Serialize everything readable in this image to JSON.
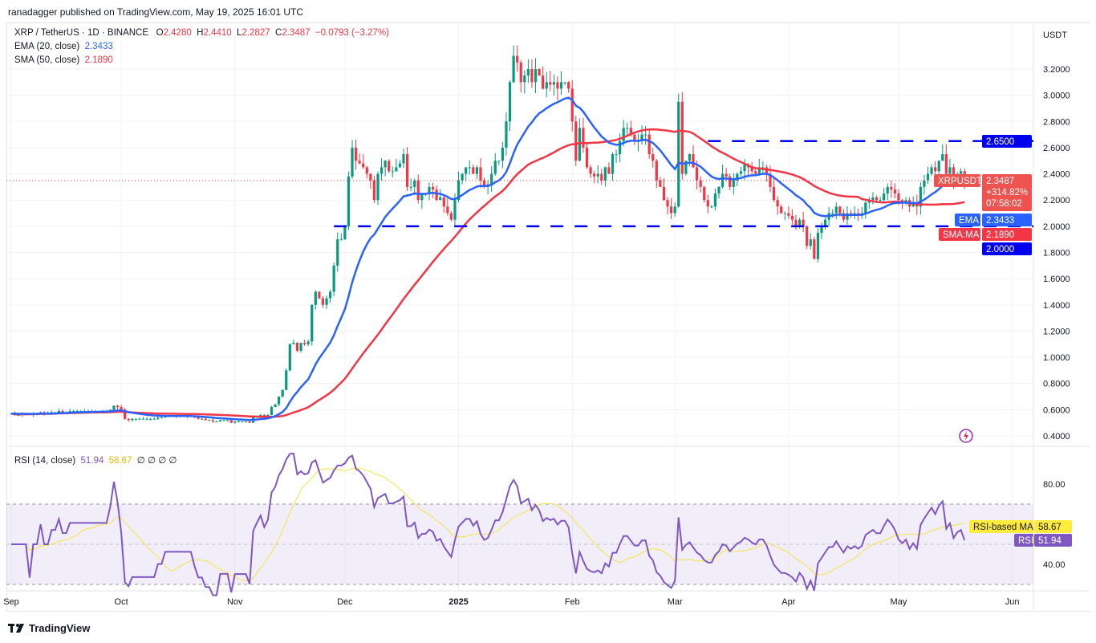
{
  "publisher_line": "ranadagger published on TradingView.com, May 19, 2025 16:01 UTC",
  "symbol": {
    "title": "XRP / TetherUS · 1D · BINANCE",
    "o_label": "O",
    "o": "2.4280",
    "h_label": "H",
    "h": "2.4410",
    "l_label": "L",
    "l": "2.2827",
    "c_label": "C",
    "c": "2.3487",
    "change": "−0.0793 (−3.27%)"
  },
  "indicators": {
    "ema_label": "EMA (20, close)",
    "ema_value": "2.3433",
    "sma_label": "SMA (50, close)",
    "sma_value": "2.1890",
    "rsi_label": "RSI (14, close)",
    "rsi_value": "51.94",
    "rsi_ma_value": "58.67",
    "rsi_extra": "∅ ∅ ∅ ∅"
  },
  "currency": "USDT",
  "price_tags": {
    "resistance": "2.6500",
    "support": "2.0000",
    "symbol_tag": "XRPUSDT",
    "last": "2.3487",
    "pct": "+314.82%",
    "countdown": "07:58:02",
    "ema_tag": "EMA",
    "ema": "2.3433",
    "sma_tag": "SMA:MA",
    "sma": "2.1890"
  },
  "rsi_tags": {
    "ma_tag": "RSI-based MA",
    "ma": "58.67",
    "rsi_tag": "RSI",
    "rsi": "51.94"
  },
  "footer_logo": "TradingView",
  "colors": {
    "up": "#089981",
    "down": "#f23645",
    "ema": "#2962ff",
    "sma": "#f23645",
    "level": "#0000ee",
    "rsi": "#7e57c2",
    "rsi_ma": "#f5e342"
  },
  "chart_data": {
    "type": "candlestick",
    "start_date": "2024-09-01",
    "y_ticks": [
      "3.2000",
      "3.0000",
      "2.8000",
      "2.6000",
      "2.4000",
      "2.2000",
      "2.0000",
      "1.8000",
      "1.6000",
      "1.4000",
      "1.2000",
      "1.0000",
      "0.8000",
      "0.6000",
      "0.4000"
    ],
    "x_ticks": [
      "Sep",
      "Oct",
      "Nov",
      "Dec",
      "2025",
      "Feb",
      "Mar",
      "Apr",
      "May",
      "Jun"
    ],
    "rsi_ticks": [
      "80.00",
      "40.00"
    ],
    "horizontal_levels": [
      2.65,
      2.0
    ],
    "closes": [
      0.57,
      0.56,
      0.56,
      0.57,
      0.57,
      0.56,
      0.57,
      0.57,
      0.58,
      0.57,
      0.57,
      0.58,
      0.58,
      0.59,
      0.58,
      0.58,
      0.59,
      0.59,
      0.59,
      0.59,
      0.59,
      0.59,
      0.59,
      0.59,
      0.59,
      0.59,
      0.59,
      0.6,
      0.63,
      0.62,
      0.6,
      0.53,
      0.52,
      0.53,
      0.53,
      0.53,
      0.53,
      0.53,
      0.53,
      0.53,
      0.54,
      0.54,
      0.55,
      0.55,
      0.55,
      0.55,
      0.55,
      0.55,
      0.55,
      0.55,
      0.54,
      0.53,
      0.53,
      0.52,
      0.52,
      0.51,
      0.51,
      0.52,
      0.52,
      0.52,
      0.5,
      0.51,
      0.51,
      0.51,
      0.51,
      0.5,
      0.54,
      0.55,
      0.56,
      0.55,
      0.56,
      0.62,
      0.64,
      0.7,
      0.75,
      0.9,
      1.1,
      1.11,
      1.05,
      1.11,
      1.1,
      1.12,
      1.4,
      1.5,
      1.45,
      1.4,
      1.45,
      1.5,
      1.7,
      1.9,
      1.9,
      2.0,
      2.38,
      2.6,
      2.5,
      2.48,
      2.45,
      2.4,
      2.35,
      2.2,
      2.4,
      2.45,
      2.5,
      2.42,
      2.42,
      2.45,
      2.48,
      2.55,
      2.3,
      2.3,
      2.35,
      2.2,
      2.25,
      2.25,
      2.3,
      2.28,
      2.2,
      2.22,
      2.15,
      2.1,
      2.05,
      2.2,
      2.35,
      2.4,
      2.45,
      2.45,
      2.4,
      2.45,
      2.35,
      2.3,
      2.32,
      2.4,
      2.5,
      2.5,
      2.6,
      2.8,
      3.1,
      3.3,
      3.25,
      3.1,
      3.15,
      3.2,
      3.1,
      3.2,
      3.15,
      3.05,
      3.1,
      3.08,
      3.1,
      3.05,
      3.1,
      3.1,
      3.05,
      2.8,
      2.5,
      2.75,
      2.6,
      2.45,
      2.4,
      2.38,
      2.4,
      2.35,
      2.45,
      2.4,
      2.55,
      2.55,
      2.65,
      2.75,
      2.75,
      2.7,
      2.65,
      2.65,
      2.7,
      2.7,
      2.55,
      2.5,
      2.35,
      2.3,
      2.2,
      2.15,
      2.1,
      2.15,
      2.95,
      2.4,
      2.5,
      2.55,
      2.45,
      2.35,
      2.3,
      2.2,
      2.15,
      2.15,
      2.25,
      2.3,
      2.4,
      2.38,
      2.3,
      2.35,
      2.4,
      2.42,
      2.47,
      2.45,
      2.42,
      2.4,
      2.45,
      2.45,
      2.4,
      2.3,
      2.2,
      2.15,
      2.1,
      2.1,
      2.08,
      2.05,
      2.0,
      2.05,
      2.0,
      1.85,
      1.9,
      1.75,
      1.95,
      2.0,
      2.05,
      2.1,
      2.1,
      2.15,
      2.1,
      2.05,
      2.1,
      2.08,
      2.1,
      2.08,
      2.1,
      2.18,
      2.2,
      2.22,
      2.2,
      2.2,
      2.25,
      2.3,
      2.28,
      2.25,
      2.2,
      2.18,
      2.2,
      2.15,
      2.18,
      2.15,
      2.3,
      2.35,
      2.4,
      2.45,
      2.42,
      2.5,
      2.55,
      2.4,
      2.45,
      2.35,
      2.4,
      2.42,
      2.3487
    ]
  }
}
